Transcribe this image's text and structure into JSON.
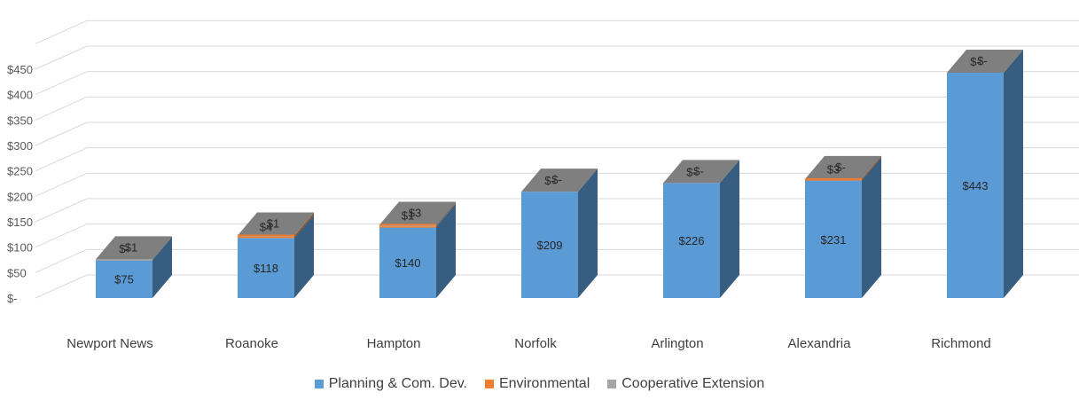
{
  "chart_data": {
    "type": "bar",
    "stacked": true,
    "style": "3d-column",
    "categories": [
      "Newport News",
      "Roanoke",
      "Hampton",
      "Norfolk",
      "Arlington",
      "Alexandria",
      "Richmond"
    ],
    "series": [
      {
        "name": "Planning & Com. Dev.",
        "color": "#5B9BD5",
        "values": [
          75,
          118,
          140,
          209,
          226,
          231,
          443
        ],
        "labels": [
          "$75",
          "$118",
          "$140",
          "$209",
          "$226",
          "$231",
          "$443"
        ]
      },
      {
        "name": "Environmental",
        "color": "#ED7D31",
        "values": [
          0,
          4,
          1,
          0,
          0,
          3,
          0
        ],
        "labels": [
          "$-",
          "$4",
          "$1",
          "$-",
          "$-",
          "$3",
          "$-"
        ]
      },
      {
        "name": "Cooperative Extension",
        "color": "#A5A5A5",
        "values": [
          1,
          1,
          3,
          0,
          0,
          0,
          0
        ],
        "labels": [
          "$1",
          "$1",
          "$3",
          "$-",
          "$-",
          "$-",
          "$-"
        ]
      }
    ],
    "y_ticks": [
      "$-",
      "$50",
      "$100",
      "$150",
      "$200",
      "$250",
      "$300",
      "$350",
      "$400",
      "$450"
    ],
    "ylim": [
      0,
      450
    ],
    "grid": true,
    "legend_position": "bottom"
  }
}
